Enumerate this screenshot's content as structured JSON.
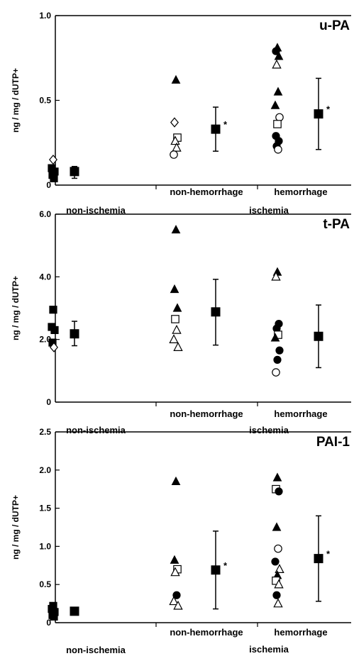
{
  "chart_data": [
    {
      "type": "scatter",
      "title": "u-PA",
      "ylabel": "ng / mg / dUTP+",
      "ylim": [
        0,
        1.0
      ],
      "yticks": [
        "0",
        "0.5",
        "1.0"
      ],
      "ytick_values": [
        0,
        0.5,
        1.0
      ],
      "categories": [
        "non-ischemia",
        "non-hemorrhage",
        "hemorrhage"
      ],
      "group_label": "ischemia",
      "points": [
        {
          "group": 0,
          "y": 0.15,
          "marker": "diamond-open"
        },
        {
          "group": 0,
          "y": 0.1,
          "marker": "square-filled"
        },
        {
          "group": 0,
          "y": 0.08,
          "marker": "square-filled"
        },
        {
          "group": 0,
          "y": 0.06,
          "marker": "square-filled"
        },
        {
          "group": 0,
          "y": 0.04,
          "marker": "square-filled"
        },
        {
          "group": 1,
          "y": 0.62,
          "marker": "triangle-filled"
        },
        {
          "group": 1,
          "y": 0.37,
          "marker": "diamond-open"
        },
        {
          "group": 1,
          "y": 0.28,
          "marker": "square-open"
        },
        {
          "group": 1,
          "y": 0.26,
          "marker": "triangle-open"
        },
        {
          "group": 1,
          "y": 0.22,
          "marker": "triangle-open"
        },
        {
          "group": 1,
          "y": 0.18,
          "marker": "circle-open"
        },
        {
          "group": 2,
          "y": 0.81,
          "marker": "triangle-filled"
        },
        {
          "group": 2,
          "y": 0.79,
          "marker": "circle-filled"
        },
        {
          "group": 2,
          "y": 0.76,
          "marker": "triangle-filled"
        },
        {
          "group": 2,
          "y": 0.71,
          "marker": "triangle-open"
        },
        {
          "group": 2,
          "y": 0.55,
          "marker": "triangle-filled"
        },
        {
          "group": 2,
          "y": 0.47,
          "marker": "triangle-filled"
        },
        {
          "group": 2,
          "y": 0.4,
          "marker": "circle-open"
        },
        {
          "group": 2,
          "y": 0.36,
          "marker": "square-open"
        },
        {
          "group": 2,
          "y": 0.29,
          "marker": "circle-filled"
        },
        {
          "group": 2,
          "y": 0.26,
          "marker": "circle-filled"
        },
        {
          "group": 2,
          "y": 0.23,
          "marker": "circle-filled"
        },
        {
          "group": 2,
          "y": 0.21,
          "marker": "circle-open"
        }
      ],
      "means": [
        {
          "group": 0,
          "mean": 0.08,
          "low": 0.04,
          "high": 0.11,
          "significant": false
        },
        {
          "group": 1,
          "mean": 0.33,
          "low": 0.2,
          "high": 0.46,
          "significant": true
        },
        {
          "group": 2,
          "mean": 0.42,
          "low": 0.21,
          "high": 0.63,
          "significant": true
        }
      ],
      "significance_marker": "*"
    },
    {
      "type": "scatter",
      "title": "t-PA",
      "ylabel": "ng / mg / dUTP+",
      "ylim": [
        0,
        6.0
      ],
      "yticks": [
        "0",
        "2.0",
        "4.0",
        "6.0"
      ],
      "ytick_values": [
        0,
        2.0,
        4.0,
        6.0
      ],
      "categories": [
        "non-ischemia",
        "non-hemorrhage",
        "hemorrhage"
      ],
      "group_label": "ischemia",
      "points": [
        {
          "group": 0,
          "y": 2.95,
          "marker": "square-filled"
        },
        {
          "group": 0,
          "y": 2.4,
          "marker": "square-filled"
        },
        {
          "group": 0,
          "y": 2.3,
          "marker": "square-filled"
        },
        {
          "group": 0,
          "y": 1.9,
          "marker": "square-filled"
        },
        {
          "group": 0,
          "y": 1.75,
          "marker": "diamond-open"
        },
        {
          "group": 1,
          "y": 5.5,
          "marker": "triangle-filled"
        },
        {
          "group": 1,
          "y": 3.6,
          "marker": "triangle-filled"
        },
        {
          "group": 1,
          "y": 3.0,
          "marker": "triangle-filled"
        },
        {
          "group": 1,
          "y": 2.65,
          "marker": "square-open"
        },
        {
          "group": 1,
          "y": 2.3,
          "marker": "triangle-open"
        },
        {
          "group": 1,
          "y": 2.0,
          "marker": "triangle-open"
        },
        {
          "group": 1,
          "y": 1.75,
          "marker": "triangle-open"
        },
        {
          "group": 2,
          "y": 4.15,
          "marker": "triangle-filled"
        },
        {
          "group": 2,
          "y": 4.0,
          "marker": "triangle-open"
        },
        {
          "group": 2,
          "y": 2.5,
          "marker": "circle-filled"
        },
        {
          "group": 2,
          "y": 2.35,
          "marker": "circle-filled"
        },
        {
          "group": 2,
          "y": 2.15,
          "marker": "square-open"
        },
        {
          "group": 2,
          "y": 2.05,
          "marker": "triangle-filled"
        },
        {
          "group": 2,
          "y": 1.65,
          "marker": "circle-filled"
        },
        {
          "group": 2,
          "y": 1.35,
          "marker": "circle-filled"
        },
        {
          "group": 2,
          "y": 0.95,
          "marker": "circle-open"
        }
      ],
      "means": [
        {
          "group": 0,
          "mean": 2.18,
          "low": 1.8,
          "high": 2.58,
          "significant": false
        },
        {
          "group": 1,
          "mean": 2.88,
          "low": 1.82,
          "high": 3.92,
          "significant": false
        },
        {
          "group": 2,
          "mean": 2.1,
          "low": 1.1,
          "high": 3.1,
          "significant": false
        }
      ],
      "significance_marker": ""
    },
    {
      "type": "scatter",
      "title": "PAI-1",
      "ylabel": "ng / mg / dUTP+",
      "ylim": [
        0,
        2.5
      ],
      "yticks": [
        "0",
        "0.5",
        "1.0",
        "1.5",
        "2.0",
        "2.5"
      ],
      "ytick_values": [
        0,
        0.5,
        1.0,
        1.5,
        2.0,
        2.5
      ],
      "categories": [
        "non-ischemia",
        "non-hemorrhage",
        "hemorrhage"
      ],
      "group_label": "ischemia",
      "points": [
        {
          "group": 0,
          "y": 0.22,
          "marker": "square-filled"
        },
        {
          "group": 0,
          "y": 0.18,
          "marker": "square-filled"
        },
        {
          "group": 0,
          "y": 0.14,
          "marker": "square-filled"
        },
        {
          "group": 0,
          "y": 0.1,
          "marker": "square-filled"
        },
        {
          "group": 0,
          "y": 0.08,
          "marker": "square-filled"
        },
        {
          "group": 1,
          "y": 1.85,
          "marker": "triangle-filled"
        },
        {
          "group": 1,
          "y": 0.82,
          "marker": "triangle-filled"
        },
        {
          "group": 1,
          "y": 0.7,
          "marker": "square-open"
        },
        {
          "group": 1,
          "y": 0.66,
          "marker": "triangle-open"
        },
        {
          "group": 1,
          "y": 0.36,
          "marker": "circle-filled"
        },
        {
          "group": 1,
          "y": 0.28,
          "marker": "triangle-open"
        },
        {
          "group": 1,
          "y": 0.22,
          "marker": "triangle-open"
        },
        {
          "group": 2,
          "y": 1.9,
          "marker": "triangle-filled"
        },
        {
          "group": 2,
          "y": 1.75,
          "marker": "square-open"
        },
        {
          "group": 2,
          "y": 1.72,
          "marker": "circle-filled"
        },
        {
          "group": 2,
          "y": 1.25,
          "marker": "triangle-filled"
        },
        {
          "group": 2,
          "y": 0.97,
          "marker": "circle-open"
        },
        {
          "group": 2,
          "y": 0.8,
          "marker": "circle-filled"
        },
        {
          "group": 2,
          "y": 0.7,
          "marker": "triangle-open"
        },
        {
          "group": 2,
          "y": 0.62,
          "marker": "triangle-filled"
        },
        {
          "group": 2,
          "y": 0.55,
          "marker": "square-open"
        },
        {
          "group": 2,
          "y": 0.5,
          "marker": "triangle-open"
        },
        {
          "group": 2,
          "y": 0.36,
          "marker": "circle-filled"
        },
        {
          "group": 2,
          "y": 0.25,
          "marker": "triangle-open"
        }
      ],
      "means": [
        {
          "group": 0,
          "mean": 0.15,
          "low": 0.12,
          "high": 0.18,
          "significant": false
        },
        {
          "group": 1,
          "mean": 0.69,
          "low": 0.18,
          "high": 1.2,
          "significant": true
        },
        {
          "group": 2,
          "mean": 0.84,
          "low": 0.28,
          "high": 1.4,
          "significant": true
        }
      ],
      "significance_marker": "*"
    }
  ]
}
